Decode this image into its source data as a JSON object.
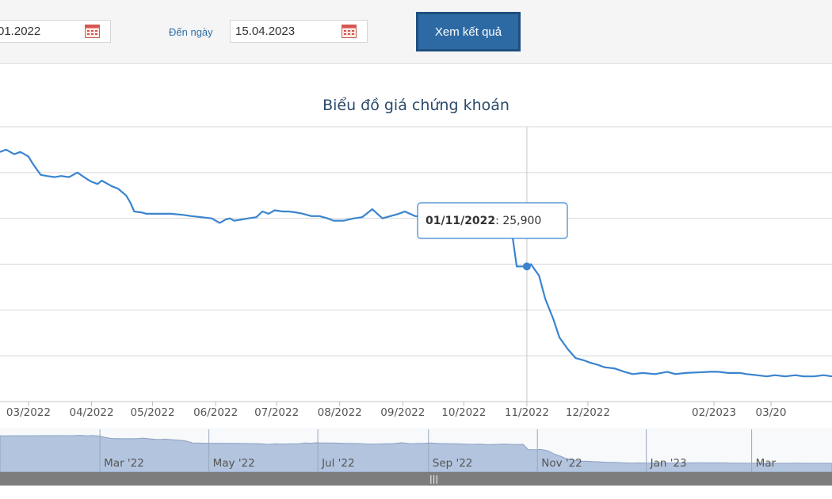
{
  "filters": {
    "from_date": "01.2022",
    "to_label": "Đến ngày",
    "to_date": "15.04.2023",
    "submit_label": "Xem kết quả"
  },
  "colors": {
    "line": "#3a84cf",
    "navigator_fill": "#b3c4de",
    "navigator_line": "#8ba1c4",
    "grid": "#d8d8d8",
    "title": "#2b4a6b",
    "tick": "#555555",
    "button": "#2d6aa4"
  },
  "chart_data": {
    "type": "line",
    "title": "Biểu đồ giá chứng khoán",
    "x_tick_labels": [
      "03/2022",
      "04/2022",
      "05/2022",
      "06/2022",
      "07/2022",
      "08/2022",
      "09/2022",
      "10/2022",
      "11/2022",
      "12/2022",
      "02/2023",
      "03/20"
    ],
    "series": [
      {
        "x": [
          "2022-02-15",
          "2022-02-18",
          "2022-02-22",
          "2022-02-25",
          "2022-03-01",
          "2022-03-03",
          "2022-03-07",
          "2022-03-10",
          "2022-03-14",
          "2022-03-17",
          "2022-03-21",
          "2022-03-25",
          "2022-03-30",
          "2022-04-01",
          "2022-04-04",
          "2022-04-06",
          "2022-04-11",
          "2022-04-14",
          "2022-04-18",
          "2022-04-20",
          "2022-04-22",
          "2022-04-26",
          "2022-04-28",
          "2022-05-04",
          "2022-05-10",
          "2022-05-16",
          "2022-05-20",
          "2022-05-25",
          "2022-05-30",
          "2022-06-03",
          "2022-06-06",
          "2022-06-08",
          "2022-06-10",
          "2022-06-14",
          "2022-06-17",
          "2022-06-21",
          "2022-06-24",
          "2022-06-27",
          "2022-06-30",
          "2022-07-04",
          "2022-07-07",
          "2022-07-11",
          "2022-07-14",
          "2022-07-18",
          "2022-07-22",
          "2022-07-26",
          "2022-07-29",
          "2022-08-03",
          "2022-08-08",
          "2022-08-12",
          "2022-08-17",
          "2022-08-22",
          "2022-08-26",
          "2022-08-30",
          "2022-09-02",
          "2022-09-07",
          "2022-09-12",
          "2022-09-16",
          "2022-09-21",
          "2022-09-26",
          "2022-09-30",
          "2022-10-04",
          "2022-10-10",
          "2022-10-14",
          "2022-10-19",
          "2022-10-24",
          "2022-10-27",
          "2022-11-01",
          "2022-11-03",
          "2022-11-07",
          "2022-11-10",
          "2022-11-14",
          "2022-11-17",
          "2022-11-21",
          "2022-11-25",
          "2022-11-29",
          "2022-12-02",
          "2022-12-06",
          "2022-12-09",
          "2022-12-14",
          "2022-12-19",
          "2022-12-23",
          "2022-12-28",
          "2023-01-03",
          "2023-01-09",
          "2023-01-13",
          "2023-01-18",
          "2023-01-30",
          "2023-02-03",
          "2023-02-08",
          "2023-02-14",
          "2023-02-17",
          "2023-02-22",
          "2023-02-27",
          "2023-03-03",
          "2023-03-08",
          "2023-03-13",
          "2023-03-17",
          "2023-03-22",
          "2023-03-27",
          "2023-03-31"
        ],
        "y": [
          30900,
          31000,
          30800,
          30900,
          30700,
          30400,
          29900,
          29850,
          29800,
          29850,
          29800,
          30000,
          29700,
          29600,
          29500,
          29650,
          29400,
          29300,
          29000,
          28700,
          28300,
          28250,
          28200,
          28200,
          28200,
          28150,
          28100,
          28050,
          28000,
          27800,
          27950,
          28000,
          27900,
          27950,
          28000,
          28050,
          28300,
          28200,
          28350,
          28300,
          28300,
          28250,
          28200,
          28100,
          28100,
          28000,
          27900,
          27900,
          28000,
          28050,
          28400,
          28000,
          28100,
          28200,
          28300,
          28100,
          28050,
          28000,
          27900,
          27800,
          27850,
          27700,
          27800,
          27900,
          27750,
          27800,
          25900,
          25900,
          26000,
          25500,
          24500,
          23600,
          22800,
          22300,
          21900,
          21800,
          21700,
          21600,
          21500,
          21450,
          21300,
          21200,
          21250,
          21200,
          21300,
          21200,
          21250,
          21300,
          21300,
          21250,
          21250,
          21200,
          21150,
          21100,
          21150,
          21100,
          21150,
          21100,
          21100,
          21150,
          21100
        ]
      }
    ],
    "tooltip": {
      "date": "01/11/2022",
      "value": "25,900"
    },
    "navigator": {
      "tick_labels": [
        "Mar '22",
        "May '22",
        "Jul '22",
        "Sep '22",
        "Nov '22",
        "Jan '23",
        "Mar"
      ]
    },
    "grid": true
  }
}
